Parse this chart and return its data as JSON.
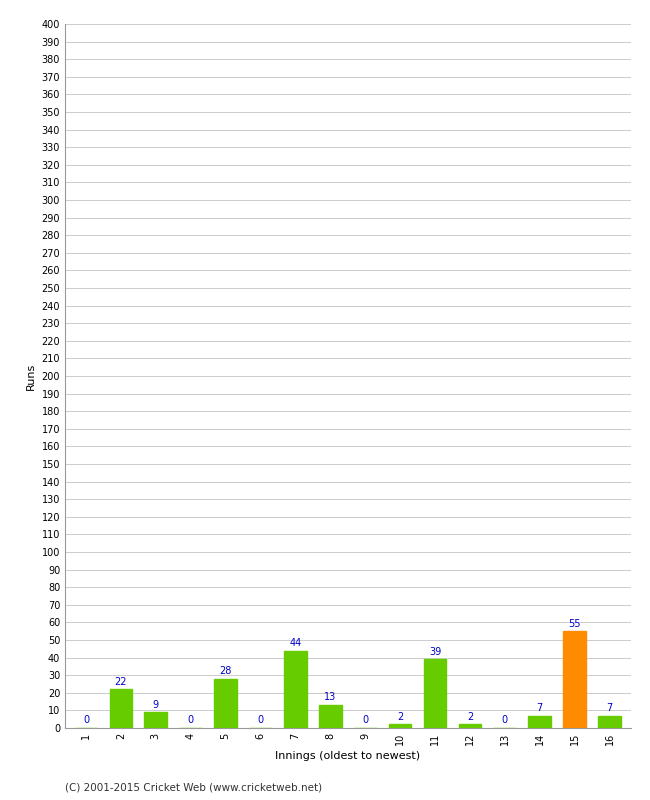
{
  "xlabel": "Innings (oldest to newest)",
  "ylabel": "Runs",
  "categories": [
    1,
    2,
    3,
    4,
    5,
    6,
    7,
    8,
    9,
    10,
    11,
    12,
    13,
    14,
    15,
    16
  ],
  "values": [
    0,
    22,
    9,
    0,
    28,
    0,
    44,
    13,
    0,
    2,
    39,
    2,
    0,
    7,
    55,
    7
  ],
  "bar_colors": [
    "#66cc00",
    "#66cc00",
    "#66cc00",
    "#66cc00",
    "#66cc00",
    "#66cc00",
    "#66cc00",
    "#66cc00",
    "#66cc00",
    "#66cc00",
    "#66cc00",
    "#66cc00",
    "#66cc00",
    "#66cc00",
    "#ff8c00",
    "#66cc00"
  ],
  "ylim": [
    0,
    400
  ],
  "background_color": "#ffffff",
  "grid_color": "#cccccc",
  "label_color": "#0000cc",
  "label_fontsize": 7,
  "tick_fontsize": 7,
  "axis_label_fontsize": 8,
  "footer": "(C) 2001-2015 Cricket Web (www.cricketweb.net)",
  "footer_fontsize": 7.5
}
